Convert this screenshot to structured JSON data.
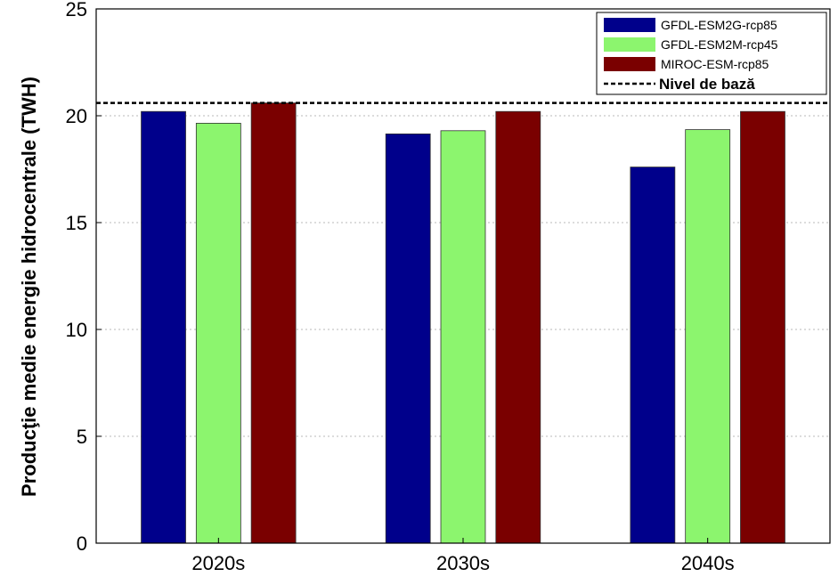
{
  "chart_data": {
    "type": "bar",
    "ylabel": "Producţie medie energie hidrocentrale (TWH)",
    "xlabel": "",
    "title": "",
    "categories": [
      "2020s",
      "2030s",
      "2040s"
    ],
    "ylim": [
      0,
      25
    ],
    "yticks": [
      "0",
      "5",
      "10",
      "15",
      "20",
      "25"
    ],
    "grid": "horizontal dotted",
    "legend_position": "top-right",
    "series": [
      {
        "name": "GFDL-ESM2G-rcp85",
        "color": "#00008b",
        "values": [
          20.2,
          19.15,
          17.6
        ]
      },
      {
        "name": "GFDL-ESM2M-rcp45",
        "color": "#8cf56e",
        "values": [
          19.65,
          19.3,
          19.35
        ]
      },
      {
        "name": "MIROC-ESM-rcp85",
        "color": "#7a0000",
        "values": [
          20.6,
          20.2,
          20.2
        ]
      }
    ],
    "baseline": {
      "name": "Nivel de bază",
      "value": 20.6,
      "style": "dashed"
    }
  }
}
